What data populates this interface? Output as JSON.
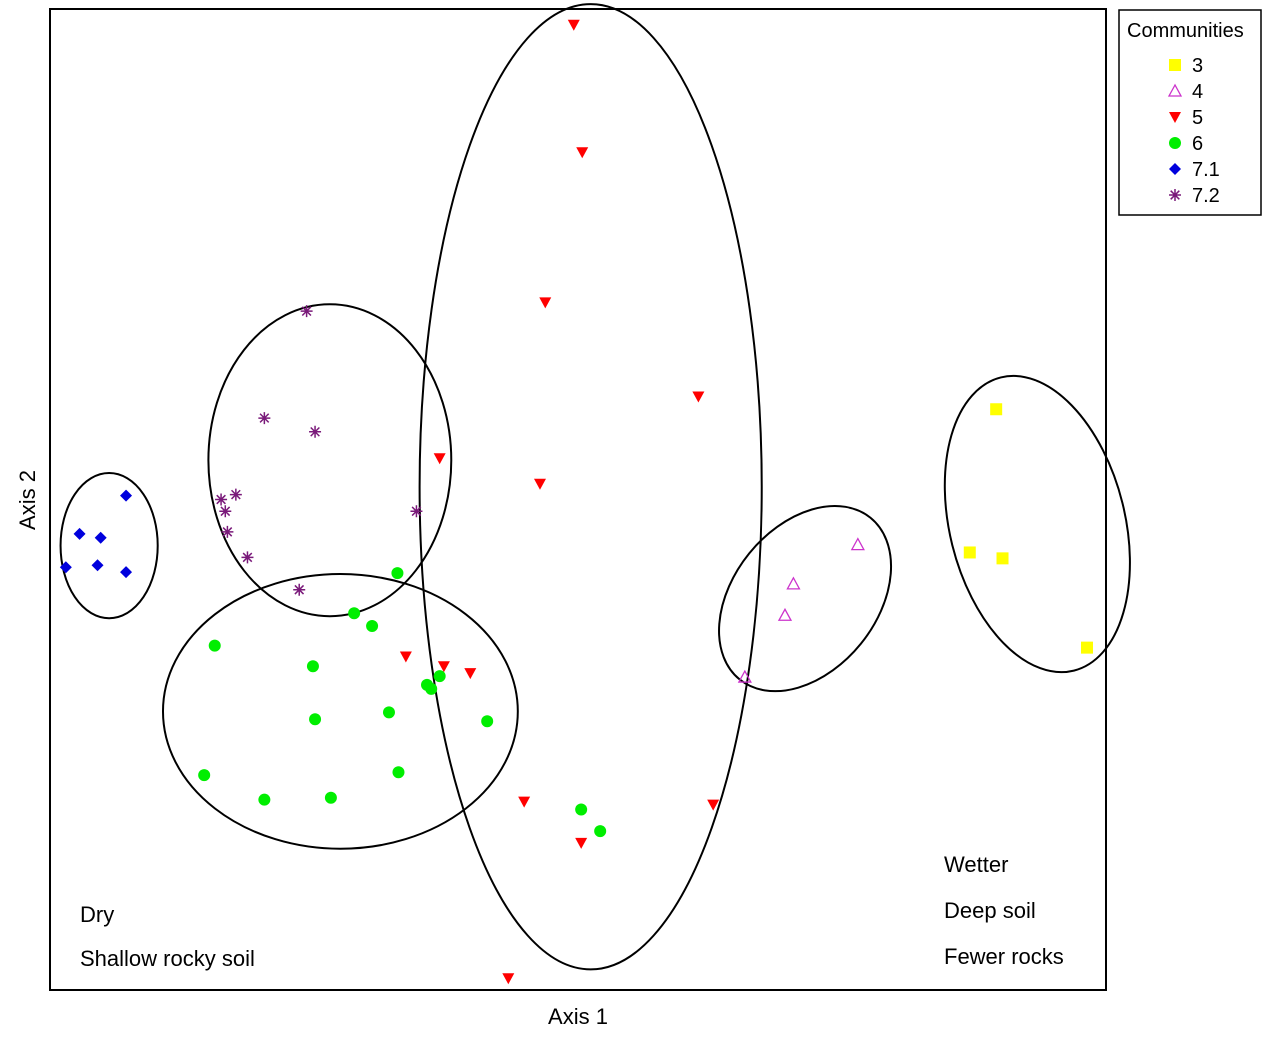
{
  "chart_data": {
    "type": "scatter",
    "xlabel": "Axis 1",
    "ylabel": "Axis 2",
    "xlim": [
      0,
      100
    ],
    "ylim": [
      0,
      100
    ],
    "grid": false,
    "legend": {
      "title": "Communities",
      "position": "top-right"
    },
    "series": [
      {
        "name": "3",
        "marker": "square",
        "color": "#ffff00",
        "points": [
          [
            89.6,
            59.2
          ],
          [
            87.1,
            44.6
          ],
          [
            90.2,
            44.0
          ],
          [
            98.2,
            34.9
          ]
        ]
      },
      {
        "name": "4",
        "marker": "triangle-up-open",
        "color": "#cc33cc",
        "points": [
          [
            76.5,
            45.4
          ],
          [
            70.4,
            41.4
          ],
          [
            69.6,
            38.2
          ],
          [
            65.8,
            31.9
          ]
        ]
      },
      {
        "name": "5",
        "marker": "triangle-down",
        "color": "#ff0000",
        "points": [
          [
            49.6,
            98.4
          ],
          [
            50.4,
            85.4
          ],
          [
            46.9,
            70.1
          ],
          [
            61.4,
            60.5
          ],
          [
            36.9,
            54.2
          ],
          [
            46.4,
            51.6
          ],
          [
            33.7,
            34.0
          ],
          [
            37.3,
            33.0
          ],
          [
            39.8,
            32.3
          ],
          [
            44.9,
            19.2
          ],
          [
            50.3,
            15.0
          ],
          [
            62.8,
            18.9
          ],
          [
            43.4,
            1.2
          ]
        ]
      },
      {
        "name": "6",
        "marker": "circle",
        "color": "#00ee00",
        "points": [
          [
            32.9,
            42.5
          ],
          [
            28.8,
            38.4
          ],
          [
            30.5,
            37.1
          ],
          [
            15.6,
            35.1
          ],
          [
            24.9,
            33.0
          ],
          [
            36.9,
            32.0
          ],
          [
            35.7,
            31.1
          ],
          [
            36.1,
            30.7
          ],
          [
            32.1,
            28.3
          ],
          [
            25.1,
            27.6
          ],
          [
            41.4,
            27.4
          ],
          [
            33.0,
            22.2
          ],
          [
            14.6,
            21.9
          ],
          [
            20.3,
            19.4
          ],
          [
            26.6,
            19.6
          ],
          [
            50.3,
            18.4
          ],
          [
            52.1,
            16.2
          ]
        ]
      },
      {
        "name": "7.1",
        "marker": "diamond",
        "color": "#0000dd",
        "points": [
          [
            7.2,
            50.4
          ],
          [
            2.8,
            46.5
          ],
          [
            4.8,
            46.1
          ],
          [
            1.5,
            43.1
          ],
          [
            4.5,
            43.3
          ],
          [
            7.2,
            42.6
          ]
        ]
      },
      {
        "name": "7.2",
        "marker": "asterisk",
        "color": "#7a1a7a",
        "points": [
          [
            24.3,
            69.2
          ],
          [
            20.3,
            58.3
          ],
          [
            25.1,
            56.9
          ],
          [
            17.6,
            50.5
          ],
          [
            16.2,
            50.0
          ],
          [
            16.6,
            48.8
          ],
          [
            34.7,
            48.8
          ],
          [
            16.8,
            46.7
          ],
          [
            18.7,
            44.1
          ],
          [
            23.6,
            40.8
          ]
        ]
      }
    ],
    "ellipses": [
      {
        "group": "7.1",
        "cx": 5.6,
        "cy": 45.3,
        "rx": 4.6,
        "ry": 7.4,
        "angle": 0
      },
      {
        "group": "7.2",
        "cx": 26.5,
        "cy": 54.0,
        "rx": 11.5,
        "ry": 15.9,
        "angle": 0
      },
      {
        "group": "6",
        "cx": 27.5,
        "cy": 28.4,
        "rx": 16.8,
        "ry": 14.0,
        "angle": 0
      },
      {
        "group": "5",
        "cx": 51.2,
        "cy": 51.3,
        "rx": 16.2,
        "ry": 49.2,
        "angle": 0
      },
      {
        "group": "4",
        "cx": 71.5,
        "cy": 39.9,
        "rx": 6.8,
        "ry": 10.6,
        "angle": 39
      },
      {
        "group": "3",
        "cx": 93.5,
        "cy": 47.5,
        "rx": 8.3,
        "ry": 15.4,
        "angle": -14
      }
    ],
    "annotations": {
      "left": [
        "Dry",
        "Shallow rocky soil"
      ],
      "right": [
        "Wetter",
        "Deep soil",
        "Fewer rocks"
      ]
    }
  }
}
